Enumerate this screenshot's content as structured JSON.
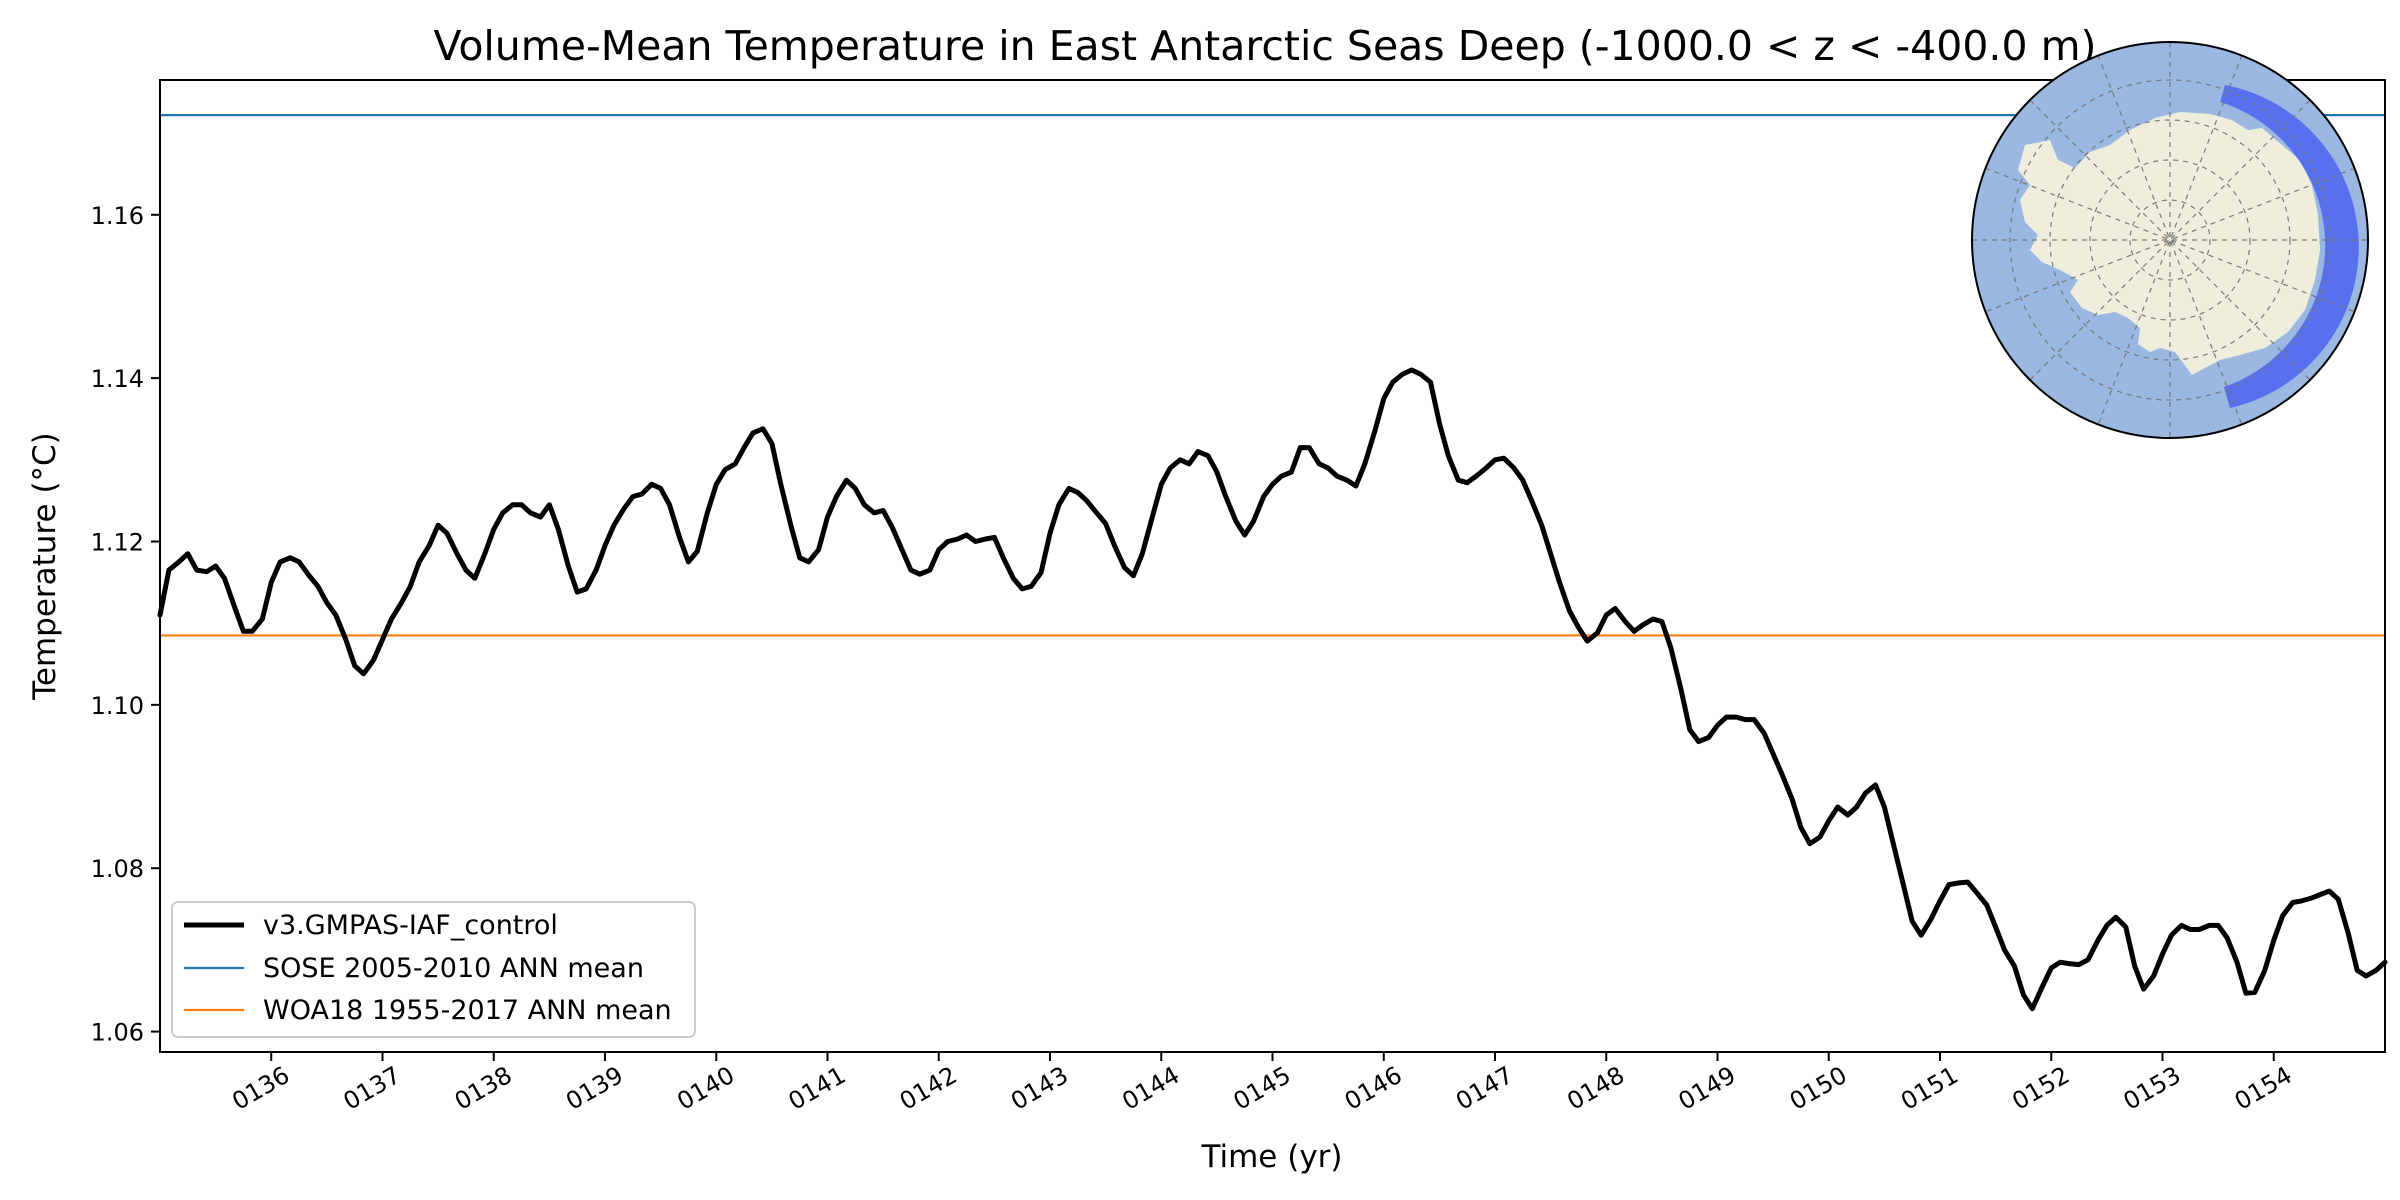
{
  "colors": {
    "series": "#000000",
    "sose": "#1f77b4",
    "woa": "#ff7f0e",
    "ocean": "#9ab8e2",
    "land": "#efeedd",
    "region": "#4a63f0"
  },
  "map_inset": {
    "icon": "antarctica-polar-map-icon"
  },
  "chart_data": {
    "type": "line",
    "title": "Volume-Mean Temperature in East Antarctic Seas Deep (-1000.0 < z < -400.0 m)",
    "xlabel": "Time (yr)",
    "ylabel": "Temperature (°C)",
    "xlim": [
      135.0,
      155.0
    ],
    "ylim": [
      1.0575,
      1.1765
    ],
    "x_ticks": [
      136,
      137,
      138,
      139,
      140,
      141,
      142,
      143,
      144,
      145,
      146,
      147,
      148,
      149,
      150,
      151,
      152,
      153,
      154
    ],
    "x_tick_labels": [
      "0136",
      "0137",
      "0138",
      "0139",
      "0140",
      "0141",
      "0142",
      "0143",
      "0144",
      "0145",
      "0146",
      "0147",
      "0148",
      "0149",
      "0150",
      "0151",
      "0152",
      "0153",
      "0154"
    ],
    "y_ticks": [
      1.06,
      1.08,
      1.1,
      1.12,
      1.14,
      1.16
    ],
    "y_tick_labels": [
      "1.06",
      "1.08",
      "1.10",
      "1.12",
      "1.14",
      "1.16"
    ],
    "legend_position": "lower-left",
    "series": [
      {
        "name": "v3.GMPAS-IAF_control",
        "style": "thick-line",
        "points": [
          [
            135.0,
            1.111
          ],
          [
            135.08,
            1.1165
          ],
          [
            135.17,
            1.1175
          ],
          [
            135.25,
            1.1185
          ],
          [
            135.33,
            1.1165
          ],
          [
            135.42,
            1.1163
          ],
          [
            135.5,
            1.117
          ],
          [
            135.58,
            1.1155
          ],
          [
            135.67,
            1.112
          ],
          [
            135.75,
            1.109
          ],
          [
            135.83,
            1.109
          ],
          [
            135.92,
            1.1105
          ],
          [
            136.0,
            1.115
          ],
          [
            136.08,
            1.1175
          ],
          [
            136.17,
            1.118
          ],
          [
            136.25,
            1.1175
          ],
          [
            136.33,
            1.116
          ],
          [
            136.42,
            1.1145
          ],
          [
            136.5,
            1.1125
          ],
          [
            136.58,
            1.111
          ],
          [
            136.67,
            1.108
          ],
          [
            136.75,
            1.1048
          ],
          [
            136.83,
            1.1038
          ],
          [
            136.92,
            1.1055
          ],
          [
            137.0,
            1.108
          ],
          [
            137.08,
            1.1105
          ],
          [
            137.17,
            1.1125
          ],
          [
            137.25,
            1.1145
          ],
          [
            137.33,
            1.1175
          ],
          [
            137.42,
            1.1195
          ],
          [
            137.5,
            1.122
          ],
          [
            137.58,
            1.121
          ],
          [
            137.67,
            1.1185
          ],
          [
            137.75,
            1.1165
          ],
          [
            137.83,
            1.1155
          ],
          [
            137.92,
            1.1185
          ],
          [
            138.0,
            1.1215
          ],
          [
            138.08,
            1.1235
          ],
          [
            138.17,
            1.1245
          ],
          [
            138.25,
            1.1245
          ],
          [
            138.33,
            1.1235
          ],
          [
            138.42,
            1.123
          ],
          [
            138.5,
            1.1245
          ],
          [
            138.58,
            1.1215
          ],
          [
            138.67,
            1.117
          ],
          [
            138.75,
            1.1138
          ],
          [
            138.83,
            1.1142
          ],
          [
            138.92,
            1.1165
          ],
          [
            139.0,
            1.1195
          ],
          [
            139.08,
            1.122
          ],
          [
            139.17,
            1.124
          ],
          [
            139.25,
            1.1255
          ],
          [
            139.33,
            1.1258
          ],
          [
            139.42,
            1.127
          ],
          [
            139.5,
            1.1265
          ],
          [
            139.58,
            1.1245
          ],
          [
            139.67,
            1.1205
          ],
          [
            139.75,
            1.1175
          ],
          [
            139.83,
            1.1188
          ],
          [
            139.92,
            1.1235
          ],
          [
            140.0,
            1.127
          ],
          [
            140.08,
            1.1288
          ],
          [
            140.17,
            1.1295
          ],
          [
            140.25,
            1.1315
          ],
          [
            140.33,
            1.1333
          ],
          [
            140.42,
            1.1338
          ],
          [
            140.5,
            1.132
          ],
          [
            140.58,
            1.127
          ],
          [
            140.67,
            1.122
          ],
          [
            140.75,
            1.118
          ],
          [
            140.83,
            1.1175
          ],
          [
            140.92,
            1.119
          ],
          [
            141.0,
            1.123
          ],
          [
            141.08,
            1.1255
          ],
          [
            141.17,
            1.1275
          ],
          [
            141.25,
            1.1265
          ],
          [
            141.33,
            1.1245
          ],
          [
            141.42,
            1.1235
          ],
          [
            141.5,
            1.1238
          ],
          [
            141.58,
            1.1218
          ],
          [
            141.67,
            1.119
          ],
          [
            141.75,
            1.1165
          ],
          [
            141.83,
            1.116
          ],
          [
            141.92,
            1.1165
          ],
          [
            142.0,
            1.119
          ],
          [
            142.08,
            1.12
          ],
          [
            142.17,
            1.1203
          ],
          [
            142.25,
            1.1208
          ],
          [
            142.33,
            1.12
          ],
          [
            142.42,
            1.1203
          ],
          [
            142.5,
            1.1205
          ],
          [
            142.58,
            1.118
          ],
          [
            142.67,
            1.1155
          ],
          [
            142.75,
            1.1142
          ],
          [
            142.83,
            1.1145
          ],
          [
            142.92,
            1.1162
          ],
          [
            143.0,
            1.121
          ],
          [
            143.08,
            1.1245
          ],
          [
            143.17,
            1.1265
          ],
          [
            143.25,
            1.126
          ],
          [
            143.33,
            1.125
          ],
          [
            143.42,
            1.1235
          ],
          [
            143.5,
            1.1222
          ],
          [
            143.58,
            1.1195
          ],
          [
            143.67,
            1.1168
          ],
          [
            143.75,
            1.1158
          ],
          [
            143.83,
            1.1185
          ],
          [
            143.92,
            1.123
          ],
          [
            144.0,
            1.127
          ],
          [
            144.08,
            1.129
          ],
          [
            144.17,
            1.13
          ],
          [
            144.25,
            1.1295
          ],
          [
            144.33,
            1.131
          ],
          [
            144.42,
            1.1305
          ],
          [
            144.5,
            1.1285
          ],
          [
            144.58,
            1.1255
          ],
          [
            144.67,
            1.1225
          ],
          [
            144.75,
            1.1208
          ],
          [
            144.83,
            1.1225
          ],
          [
            144.92,
            1.1255
          ],
          [
            145.0,
            1.127
          ],
          [
            145.08,
            1.128
          ],
          [
            145.17,
            1.1285
          ],
          [
            145.25,
            1.1315
          ],
          [
            145.33,
            1.1315
          ],
          [
            145.42,
            1.1295
          ],
          [
            145.5,
            1.129
          ],
          [
            145.58,
            1.128
          ],
          [
            145.67,
            1.1275
          ],
          [
            145.75,
            1.1268
          ],
          [
            145.83,
            1.1295
          ],
          [
            145.92,
            1.1335
          ],
          [
            146.0,
            1.1375
          ],
          [
            146.08,
            1.1395
          ],
          [
            146.17,
            1.1405
          ],
          [
            146.25,
            1.141
          ],
          [
            146.33,
            1.1405
          ],
          [
            146.42,
            1.1395
          ],
          [
            146.5,
            1.1345
          ],
          [
            146.58,
            1.1305
          ],
          [
            146.67,
            1.1275
          ],
          [
            146.75,
            1.1272
          ],
          [
            146.83,
            1.128
          ],
          [
            146.92,
            1.129
          ],
          [
            147.0,
            1.13
          ],
          [
            147.08,
            1.1302
          ],
          [
            147.17,
            1.129
          ],
          [
            147.25,
            1.1275
          ],
          [
            147.33,
            1.125
          ],
          [
            147.42,
            1.122
          ],
          [
            147.5,
            1.1185
          ],
          [
            147.58,
            1.115
          ],
          [
            147.67,
            1.1115
          ],
          [
            147.75,
            1.1095
          ],
          [
            147.83,
            1.1078
          ],
          [
            147.92,
            1.1088
          ],
          [
            148.0,
            1.111
          ],
          [
            148.08,
            1.1118
          ],
          [
            148.17,
            1.1102
          ],
          [
            148.25,
            1.109
          ],
          [
            148.33,
            1.1098
          ],
          [
            148.42,
            1.1105
          ],
          [
            148.5,
            1.1102
          ],
          [
            148.58,
            1.107
          ],
          [
            148.67,
            1.102
          ],
          [
            148.75,
            1.097
          ],
          [
            148.83,
            1.0955
          ],
          [
            148.92,
            1.096
          ],
          [
            149.0,
            1.0975
          ],
          [
            149.08,
            1.0985
          ],
          [
            149.17,
            1.0985
          ],
          [
            149.25,
            1.0982
          ],
          [
            149.33,
            1.0982
          ],
          [
            149.42,
            1.0965
          ],
          [
            149.5,
            1.094
          ],
          [
            149.58,
            1.0915
          ],
          [
            149.67,
            1.0885
          ],
          [
            149.75,
            1.085
          ],
          [
            149.83,
            1.083
          ],
          [
            149.92,
            1.0838
          ],
          [
            150.0,
            1.0858
          ],
          [
            150.08,
            1.0875
          ],
          [
            150.17,
            1.0865
          ],
          [
            150.25,
            1.0875
          ],
          [
            150.33,
            1.0892
          ],
          [
            150.42,
            1.0902
          ],
          [
            150.5,
            1.0875
          ],
          [
            150.58,
            1.083
          ],
          [
            150.67,
            1.078
          ],
          [
            150.75,
            1.0735
          ],
          [
            150.83,
            1.0718
          ],
          [
            150.92,
            1.0738
          ],
          [
            151.0,
            1.076
          ],
          [
            151.08,
            1.078
          ],
          [
            151.17,
            1.0782
          ],
          [
            151.25,
            1.0783
          ],
          [
            151.33,
            1.077
          ],
          [
            151.42,
            1.0755
          ],
          [
            151.5,
            1.0728
          ],
          [
            151.58,
            1.07
          ],
          [
            151.67,
            1.068
          ],
          [
            151.75,
            1.0645
          ],
          [
            151.83,
            1.0628
          ],
          [
            151.92,
            1.0655
          ],
          [
            152.0,
            1.0678
          ],
          [
            152.08,
            1.0685
          ],
          [
            152.17,
            1.0683
          ],
          [
            152.25,
            1.0682
          ],
          [
            152.33,
            1.0688
          ],
          [
            152.42,
            1.0712
          ],
          [
            152.5,
            1.073
          ],
          [
            152.58,
            1.074
          ],
          [
            152.67,
            1.0728
          ],
          [
            152.75,
            1.068
          ],
          [
            152.83,
            1.0652
          ],
          [
            152.92,
            1.0668
          ],
          [
            153.0,
            1.0695
          ],
          [
            153.08,
            1.0718
          ],
          [
            153.17,
            1.073
          ],
          [
            153.25,
            1.0725
          ],
          [
            153.33,
            1.0725
          ],
          [
            153.42,
            1.073
          ],
          [
            153.5,
            1.073
          ],
          [
            153.58,
            1.0715
          ],
          [
            153.67,
            1.0685
          ],
          [
            153.75,
            1.0647
          ],
          [
            153.83,
            1.0648
          ],
          [
            153.92,
            1.0675
          ],
          [
            154.0,
            1.0712
          ],
          [
            154.08,
            1.0742
          ],
          [
            154.17,
            1.0758
          ],
          [
            154.25,
            1.076
          ],
          [
            154.33,
            1.0763
          ],
          [
            154.42,
            1.0768
          ],
          [
            154.5,
            1.0772
          ],
          [
            154.58,
            1.0762
          ],
          [
            154.67,
            1.072
          ],
          [
            154.75,
            1.0675
          ],
          [
            154.83,
            1.0668
          ],
          [
            154.92,
            1.0675
          ],
          [
            155.0,
            1.0685
          ]
        ]
      },
      {
        "name": "SOSE 2005-2010 ANN mean",
        "style": "hline",
        "value": 1.1722
      },
      {
        "name": "WOA18 1955-2017 ANN mean",
        "style": "hline",
        "value": 1.1085
      }
    ]
  }
}
